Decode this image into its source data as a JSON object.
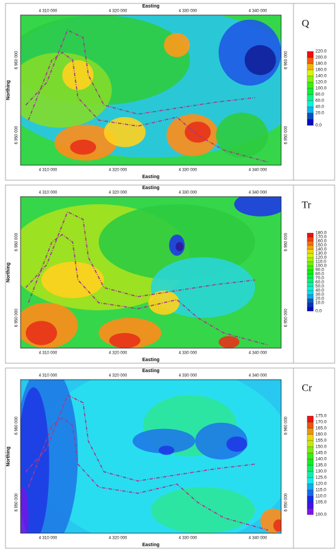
{
  "panels": [
    {
      "label": "Q",
      "axis_top": "Easting",
      "axis_bottom": "Easting",
      "axis_left": "Northing",
      "easting_ticks": [
        "4 310 000",
        "4 320 000",
        "4 330 000",
        "4 340 000"
      ],
      "northing_ticks": [
        "6 960 000",
        "6 950 000"
      ],
      "legend": [
        "220.0",
        "200.0",
        "180.0",
        "160.0",
        "140.0",
        "120.0",
        "100.0",
        "80.0",
        "60.0",
        "40.0",
        "20.0",
        "0.0"
      ]
    },
    {
      "label": "Tr",
      "axis_top": "Easting",
      "axis_bottom": "Easting",
      "axis_left": "Northing",
      "easting_ticks": [
        "4 310 000",
        "4 320 000",
        "4 330 000",
        "4 340 000"
      ],
      "northing_ticks": [
        "6 960 000",
        "6 950 000"
      ],
      "legend": [
        "180.0",
        "170.0",
        "160.0",
        "150.0",
        "140.0",
        "130.0",
        "120.0",
        "110.0",
        "100.0",
        "90.0",
        "80.0",
        "70.0",
        "60.0",
        "50.0",
        "40.0",
        "30.0",
        "20.0",
        "10.0",
        "0.0"
      ]
    },
    {
      "label": "Cr",
      "axis_top": "Easting",
      "axis_bottom": "Easting",
      "axis_left": "Northing",
      "easting_ticks": [
        "4 310 000",
        "4 320 000",
        "4 330 000",
        "4 340 000"
      ],
      "northing_ticks": [
        "6 960 000",
        "6 950 000"
      ],
      "legend": [
        "175.0",
        "170.0",
        "165.0",
        "160.0",
        "155.0",
        "150.0",
        "145.0",
        "140.0",
        "135.0",
        "130.0",
        "125.0",
        "120.0",
        "115.0",
        "110.0",
        "105.0",
        "100.0"
      ]
    }
  ]
}
